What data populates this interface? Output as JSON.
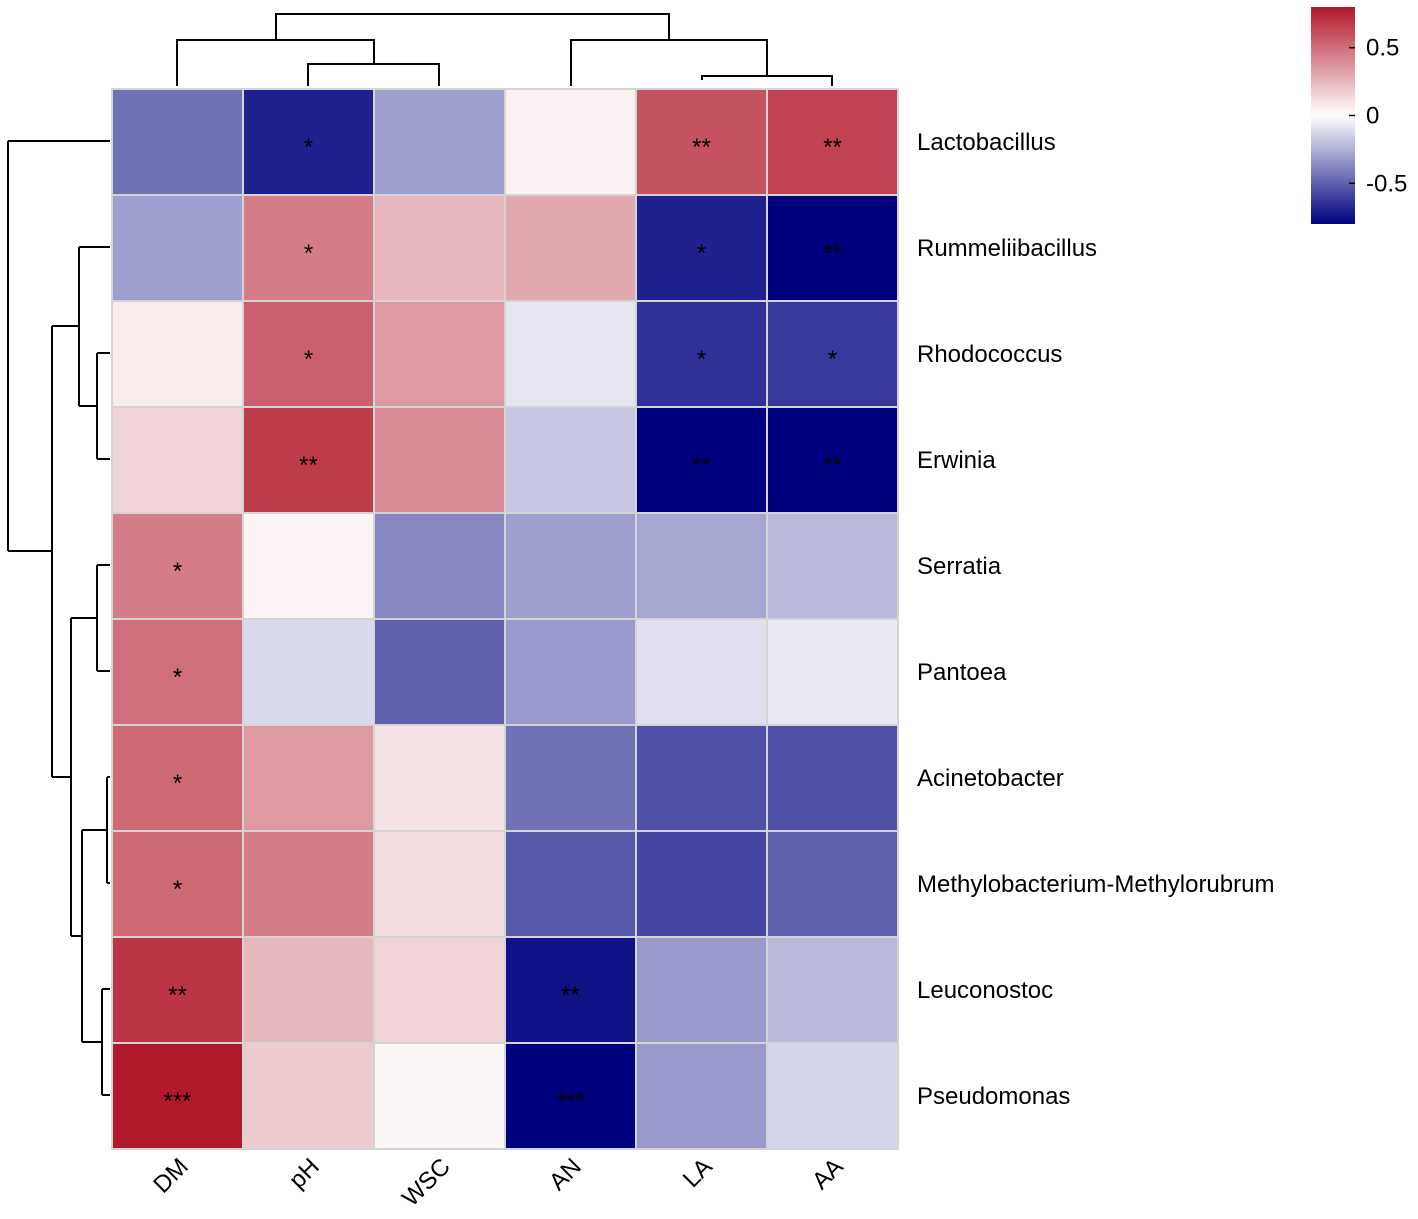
{
  "chart_data": {
    "type": "heatmap",
    "title": "",
    "columns": [
      "DM",
      "pH",
      "WSC",
      "AN",
      "LA",
      "AA"
    ],
    "rows": [
      "Lactobacillus",
      "Rummeliibacillus",
      "Rhodococcus",
      "Erwinia",
      "Serratia",
      "Pantoea",
      "Acinetobacter",
      "Methylobacterium-Methylorubrum",
      "Leuconostoc",
      "Pseudomonas"
    ],
    "values": [
      [
        -0.45,
        -0.7,
        -0.3,
        0.05,
        0.6,
        0.65
      ],
      [
        -0.3,
        0.45,
        0.25,
        0.3,
        -0.7,
        -0.8
      ],
      [
        0.07,
        0.55,
        0.35,
        -0.08,
        -0.65,
        -0.62
      ],
      [
        0.15,
        0.68,
        0.4,
        -0.18,
        -0.8,
        -0.8
      ],
      [
        0.45,
        0.04,
        -0.38,
        -0.3,
        -0.28,
        -0.22
      ],
      [
        0.5,
        -0.12,
        -0.5,
        -0.32,
        -0.1,
        -0.07
      ],
      [
        0.52,
        0.35,
        0.1,
        -0.45,
        -0.55,
        -0.55
      ],
      [
        0.52,
        0.45,
        0.12,
        -0.52,
        -0.58,
        -0.5
      ],
      [
        0.7,
        0.25,
        0.15,
        -0.75,
        -0.32,
        -0.22
      ],
      [
        0.8,
        0.18,
        0.03,
        -0.8,
        -0.32,
        -0.13
      ]
    ],
    "significance": [
      [
        "",
        "*",
        "",
        "",
        "**",
        "**"
      ],
      [
        "",
        "*",
        "",
        "",
        "*",
        "**"
      ],
      [
        "",
        "*",
        "",
        "",
        "*",
        "*"
      ],
      [
        "",
        "**",
        "",
        "",
        "**",
        "**"
      ],
      [
        "*",
        "",
        "",
        "",
        "",
        ""
      ],
      [
        "*",
        "",
        "",
        "",
        "",
        ""
      ],
      [
        "*",
        "",
        "",
        "",
        "",
        ""
      ],
      [
        "*",
        "",
        "",
        "",
        "",
        ""
      ],
      [
        "**",
        "",
        "",
        "**",
        "",
        ""
      ],
      [
        "***",
        "",
        "",
        "***",
        "",
        ""
      ]
    ],
    "color_scale": {
      "min": -0.8,
      "max": 0.8,
      "low_color": "#00007f",
      "mid_color": "#ffffff",
      "high_color": "#b2182b",
      "ticks": [
        "0.5",
        "0",
        "-0.5"
      ],
      "tick_values": [
        0.5,
        0,
        -0.5
      ]
    },
    "column_dendrogram": true,
    "row_dendrogram": true,
    "legend_position": "top-right"
  }
}
